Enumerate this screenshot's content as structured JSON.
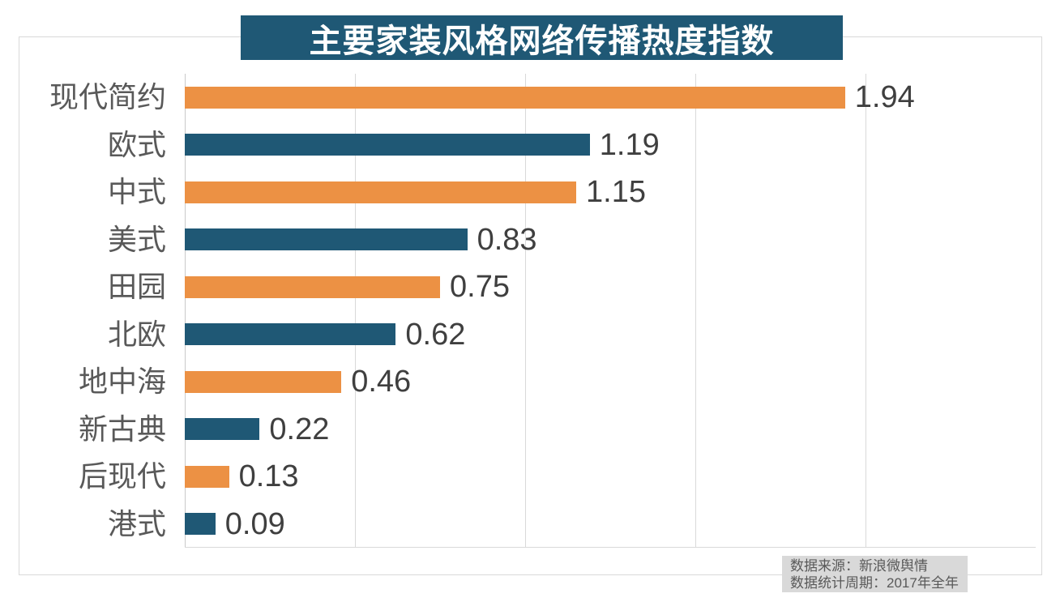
{
  "title": "主要家装风格网络传播热度指数",
  "source": {
    "line1": "数据来源：新浪微舆情",
    "line2": "数据统计周期：2017年全年"
  },
  "colors": {
    "orange": "#EC9144",
    "teal": "#1F5875",
    "title_bg": "#1F5875",
    "title_text": "#FFFFFF",
    "grid": "#D9D9D9",
    "category_text": "#595959",
    "value_text": "#3F3F3F",
    "source_bg": "#D9D9D9",
    "source_text": "#595959"
  },
  "chart_data": {
    "type": "bar",
    "orientation": "horizontal",
    "title": "主要家装风格网络传播热度指数",
    "categories": [
      "现代简约",
      "欧式",
      "中式",
      "美式",
      "田园",
      "北欧",
      "地中海",
      "新古典",
      "后现代",
      "港式"
    ],
    "values": [
      1.94,
      1.19,
      1.15,
      0.83,
      0.75,
      0.62,
      0.46,
      0.22,
      0.13,
      0.09
    ],
    "value_label_format": "0.00",
    "bar_colors_alternate": [
      "#EC9144",
      "#1F5875"
    ],
    "xlim": [
      0,
      2.5
    ],
    "grid_ticks": [
      0.5,
      1.0,
      1.5,
      2.0
    ],
    "grid": true,
    "legend": false,
    "value_labels_position": "outside-end",
    "source_note": [
      "数据来源：新浪微舆情",
      "数据统计周期：2017年全年"
    ]
  }
}
